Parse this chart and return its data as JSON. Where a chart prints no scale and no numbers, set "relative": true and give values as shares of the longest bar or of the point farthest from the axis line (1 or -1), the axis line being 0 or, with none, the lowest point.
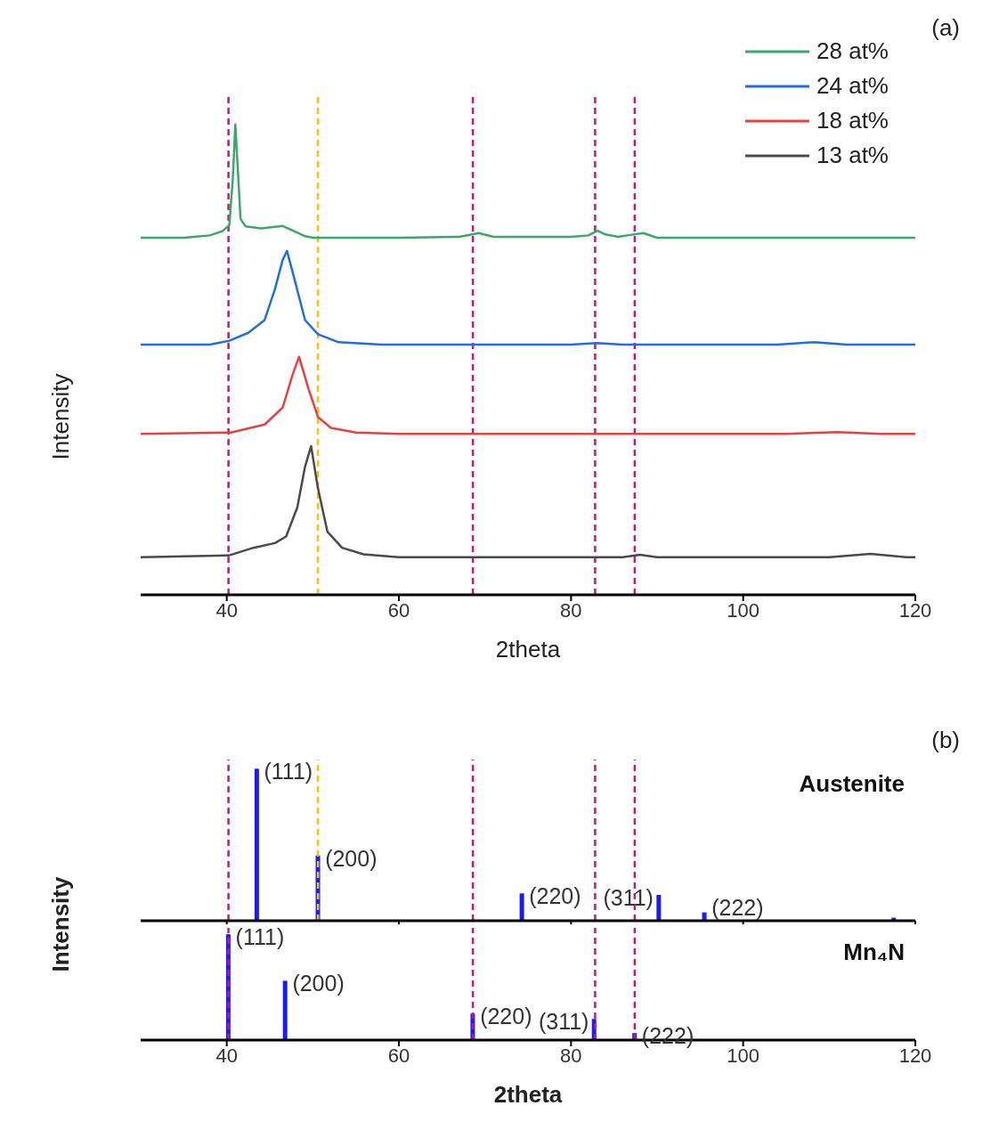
{
  "chart_data": [
    {
      "type": "line",
      "xlabel": "2theta",
      "ylabel": "Intensity",
      "relative": true,
      "xlim": [
        30,
        120
      ],
      "xticks": [
        40,
        60,
        80,
        100,
        120
      ],
      "tick_labels": "x",
      "legend": "top right",
      "annotations": [
        "(a)"
      ],
      "ref_lines": [
        {
          "axis": "x",
          "value": 40.2,
          "color": "#c71585",
          "line_style": "dashed"
        },
        {
          "axis": "x",
          "value": 50.6,
          "color": "#ffc000",
          "line_style": "dashed"
        },
        {
          "axis": "x",
          "value": 68.6,
          "color": "#c71585",
          "line_style": "dashed"
        },
        {
          "axis": "x",
          "value": 82.8,
          "color": "#c71585",
          "line_style": "dashed"
        },
        {
          "axis": "x",
          "value": 87.4,
          "color": "#c71585",
          "line_style": "dashed"
        }
      ],
      "series": [
        {
          "name": "28 at%",
          "color": "#3aa867",
          "x": [
            30,
            35,
            38,
            39.5,
            40.3,
            40.7,
            41.0,
            41.3,
            41.6,
            42.2,
            44,
            46.5,
            47.5,
            49,
            50,
            60,
            67,
            69.3,
            71,
            80,
            82,
            83.1,
            84,
            85.5,
            86.5,
            88.4,
            90,
            120
          ],
          "values": [
            0.759,
            0.759,
            0.764,
            0.773,
            0.786,
            0.883,
            1,
            0.9,
            0.799,
            0.783,
            0.779,
            0.784,
            0.776,
            0.763,
            0.759,
            0.759,
            0.761,
            0.769,
            0.761,
            0.761,
            0.764,
            0.774,
            0.766,
            0.761,
            0.764,
            0.769,
            0.759,
            0.759
          ]
        },
        {
          "name": "24 at%",
          "color": "#1f6fde",
          "x": [
            30,
            38,
            40.3,
            42.5,
            44.4,
            45.6,
            46.5,
            47.0,
            47.8,
            49.1,
            50.6,
            53,
            58,
            80,
            83,
            86,
            104,
            108.2,
            112,
            120
          ],
          "values": [
            0.532,
            0.532,
            0.54,
            0.557,
            0.584,
            0.65,
            0.712,
            0.731,
            0.676,
            0.584,
            0.554,
            0.537,
            0.532,
            0.532,
            0.535,
            0.532,
            0.532,
            0.537,
            0.532,
            0.532
          ]
        },
        {
          "name": "18 at%",
          "color": "#e8403f",
          "x": [
            30,
            40.5,
            44.4,
            46.5,
            47.6,
            48.4,
            49.5,
            50.6,
            52.1,
            55,
            60,
            105,
            110.9,
            116,
            120
          ],
          "values": [
            0.342,
            0.345,
            0.362,
            0.398,
            0.465,
            0.506,
            0.438,
            0.378,
            0.355,
            0.345,
            0.342,
            0.342,
            0.346,
            0.342,
            0.342
          ]
        },
        {
          "name": "13 at%",
          "color": "#4a4a4a",
          "x": [
            30,
            40.3,
            43.1,
            45.6,
            46.9,
            48.2,
            49.1,
            49.8,
            50.6,
            51.7,
            53.4,
            55.9,
            60,
            86,
            88,
            90,
            110,
            114.8,
            119,
            120
          ],
          "values": [
            0.08,
            0.084,
            0.1,
            0.11,
            0.124,
            0.186,
            0.273,
            0.316,
            0.226,
            0.134,
            0.1,
            0.086,
            0.08,
            0.08,
            0.085,
            0.08,
            0.08,
            0.087,
            0.08,
            0.08
          ]
        }
      ]
    },
    {
      "type": "bar",
      "ylabel": "Intensity",
      "relative": true,
      "xlim": [
        30,
        120
      ],
      "xticks": [
        40,
        60,
        80,
        100,
        120
      ],
      "tick_labels": false,
      "annotations": [
        "(b)",
        "Austenite",
        {
          "text": "(111)",
          "x": 43.5,
          "y": 1
        },
        {
          "text": "(200)",
          "x": 50.6,
          "y": 0.43
        },
        {
          "text": "(220)",
          "x": 74.3,
          "y": 0.18
        },
        {
          "text": "(311)",
          "x": 90.2,
          "y": 0.17
        },
        {
          "text": "(222)",
          "x": 95.5,
          "y": 0.055
        }
      ],
      "ref_lines": [
        {
          "axis": "x",
          "value": 40.2,
          "color": "#c71585",
          "line_style": "dashed"
        },
        {
          "axis": "x",
          "value": 50.6,
          "color": "#ffc000",
          "line_style": "dashed"
        },
        {
          "axis": "x",
          "value": 68.6,
          "color": "#c71585",
          "line_style": "dashed"
        },
        {
          "axis": "x",
          "value": 82.8,
          "color": "#c71585",
          "line_style": "dashed"
        },
        {
          "axis": "x",
          "value": 87.4,
          "color": "#c71585",
          "line_style": "dashed"
        }
      ],
      "series": [
        {
          "color": "#1a1aff",
          "x": [
            43.5,
            50.6,
            74.3,
            90.2,
            95.5,
            117.5
          ],
          "values": [
            1,
            0.43,
            0.18,
            0.17,
            0.055,
            0.02
          ]
        }
      ]
    },
    {
      "type": "bar",
      "xlabel": "2theta",
      "relative": true,
      "xlim": [
        30,
        120
      ],
      "xticks": [
        40,
        60,
        80,
        100,
        120
      ],
      "tick_labels": "x",
      "annotations": [
        "Mn₄N",
        {
          "text": "(111)",
          "x": 40.2,
          "y": 1
        },
        {
          "text": "(200)",
          "x": 46.8,
          "y": 0.56
        },
        {
          "text": "(220)",
          "x": 68.6,
          "y": 0.25
        },
        {
          "text": "(311)",
          "x": 82.7,
          "y": 0.2
        },
        {
          "text": "(222)",
          "x": 87.4,
          "y": 0.066
        }
      ],
      "ref_lines": [
        {
          "axis": "x",
          "value": 40.2,
          "color": "#c71585",
          "line_style": "dashed"
        },
        {
          "axis": "x",
          "value": 68.6,
          "color": "#c71585",
          "line_style": "dashed"
        },
        {
          "axis": "x",
          "value": 82.8,
          "color": "#c71585",
          "line_style": "dashed"
        },
        {
          "axis": "x",
          "value": 87.4,
          "color": "#c71585",
          "line_style": "dashed"
        }
      ],
      "series": [
        {
          "color": "#1a1aff",
          "x": [
            40.2,
            46.8,
            68.6,
            82.7,
            87.4
          ],
          "values": [
            1,
            0.56,
            0.25,
            0.2,
            0.066
          ]
        }
      ]
    }
  ]
}
